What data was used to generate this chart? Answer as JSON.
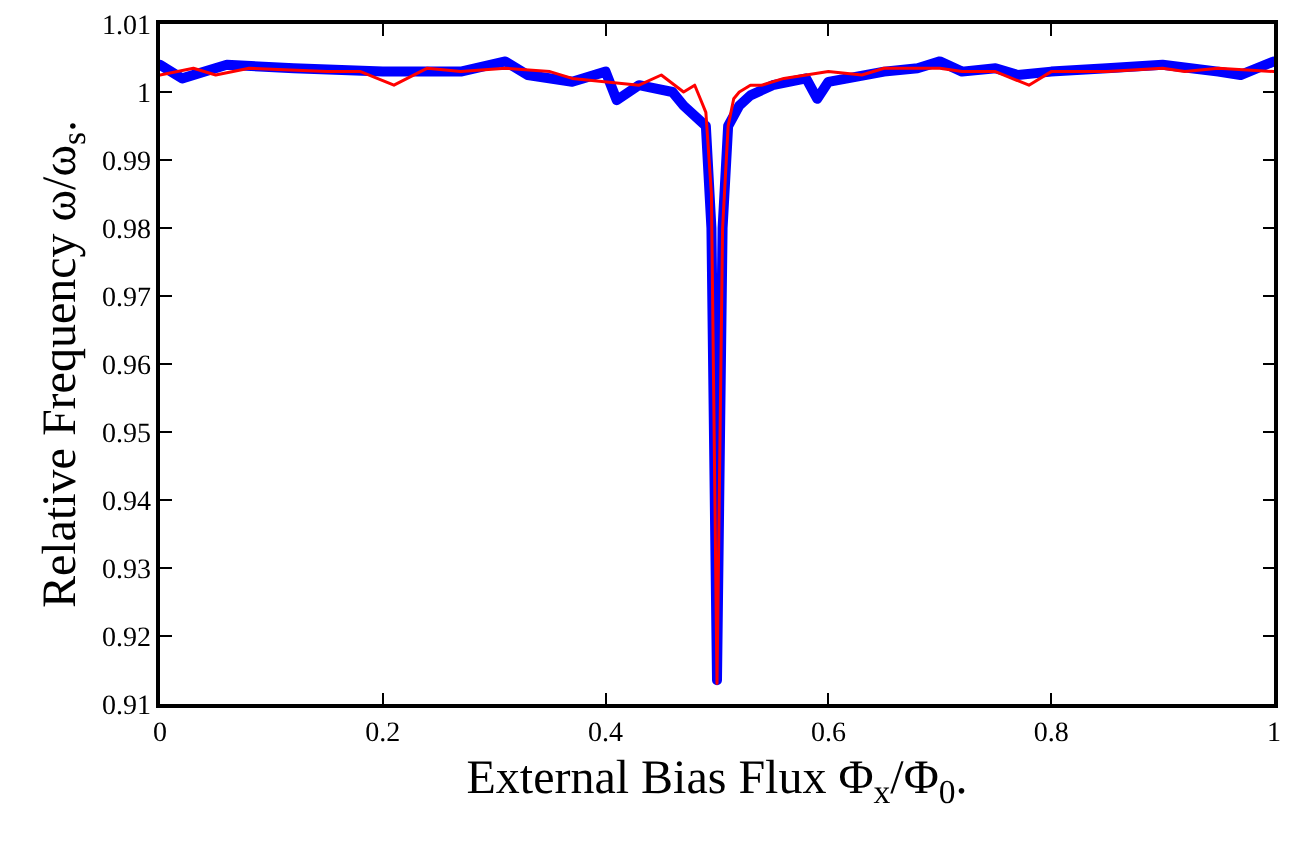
{
  "chart_data": {
    "type": "line",
    "xlabel": "External Bias Flux Φ$_{x}$/Φ$_{0}$.",
    "ylabel": "Relative Frequency ω/ω$_{s}$.",
    "xlim": [
      0,
      1
    ],
    "xticks": [
      0,
      0.2,
      0.4,
      0.6,
      0.8,
      1
    ],
    "ylim": [
      0.91,
      1.01
    ],
    "yticks": [
      0.91,
      0.92,
      0.93,
      0.94,
      0.95,
      0.96,
      0.97,
      0.98,
      0.99,
      1,
      1.01
    ],
    "marker": "none",
    "line_style": "solid",
    "series": [
      {
        "color": "#0000ff",
        "x": [
          0,
          0.02,
          0.06,
          0.12,
          0.2,
          0.27,
          0.31,
          0.33,
          0.37,
          0.4,
          0.41,
          0.43,
          0.46,
          0.47,
          0.49,
          0.495,
          0.5,
          0.505,
          0.51,
          0.52,
          0.53,
          0.55,
          0.58,
          0.59,
          0.6,
          0.65,
          0.68,
          0.7,
          0.72,
          0.75,
          0.77,
          0.8,
          0.85,
          0.9,
          0.95,
          0.97,
          1
        ],
        "values": [
          1.004,
          1.002,
          1.004,
          1.0035,
          1.003,
          1.003,
          1.0045,
          1.0025,
          1.0015,
          1.003,
          0.9988,
          1.001,
          1.0,
          0.998,
          0.995,
          0.98,
          0.9135,
          0.98,
          0.995,
          0.998,
          0.9995,
          1.001,
          1.002,
          0.999,
          1.0015,
          1.003,
          1.0035,
          1.0045,
          1.003,
          1.0035,
          1.0025,
          1.003,
          1.0035,
          1.004,
          1.003,
          1.0025,
          1.0045
        ]
      },
      {
        "color": "#ff0000",
        "x": [
          0,
          0.03,
          0.05,
          0.08,
          0.15,
          0.18,
          0.21,
          0.24,
          0.27,
          0.31,
          0.35,
          0.37,
          0.43,
          0.45,
          0.47,
          0.48,
          0.485,
          0.49,
          0.495,
          0.5,
          0.505,
          0.51,
          0.515,
          0.52,
          0.53,
          0.54,
          0.56,
          0.6,
          0.63,
          0.65,
          0.7,
          0.72,
          0.75,
          0.78,
          0.8,
          0.85,
          0.9,
          0.92,
          0.95,
          1
        ],
        "values": [
          1.0025,
          1.0035,
          1.0025,
          1.0035,
          1.003,
          1.003,
          1.001,
          1.0035,
          1.003,
          1.0035,
          1.003,
          1.002,
          1.001,
          1.0025,
          1.0,
          1.001,
          0.999,
          0.997,
          0.985,
          0.913,
          0.98,
          0.995,
          0.999,
          1.0,
          1.001,
          1.001,
          1.002,
          1.003,
          1.0025,
          1.0035,
          1.0035,
          1.003,
          1.003,
          1.001,
          1.003,
          1.003,
          1.0035,
          1.003,
          1.0035,
          1.003
        ]
      }
    ]
  }
}
